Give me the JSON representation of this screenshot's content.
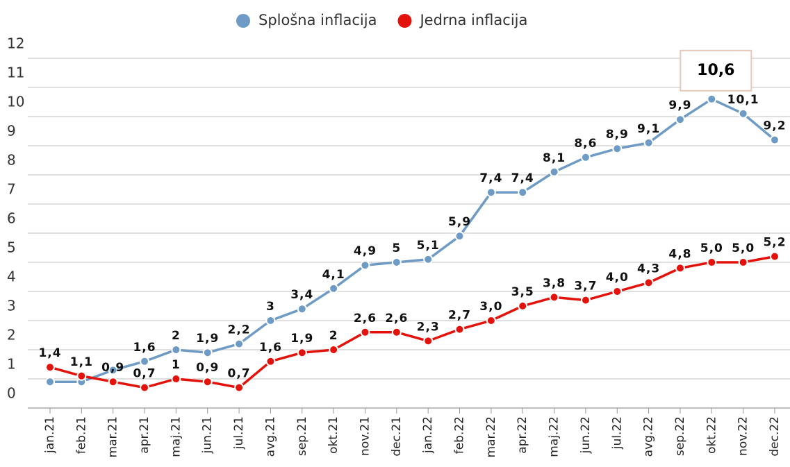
{
  "chart_data": {
    "type": "line",
    "categories": [
      "jan.21",
      "feb.21",
      "mar.21",
      "apr.21",
      "maj.21",
      "jun.21",
      "jul.21",
      "avg.21",
      "sep.21",
      "okt.21",
      "nov.21",
      "dec.21",
      "jan.22",
      "feb.22",
      "mar.22",
      "apr.22",
      "maj.22",
      "jun.22",
      "jul.22",
      "avg.22",
      "sep.22",
      "okt.22",
      "nov.22",
      "dec.22"
    ],
    "series": [
      {
        "name": "Splošna inflacija",
        "color": "#6e9bc5",
        "values": [
          0.9,
          0.9,
          1.3,
          1.6,
          2,
          1.9,
          2.2,
          3,
          3.4,
          4.1,
          4.9,
          5,
          5.1,
          5.9,
          7.4,
          7.4,
          8.1,
          8.6,
          8.9,
          9.1,
          9.9,
          10.6,
          10.1,
          9.2
        ],
        "value_labels": [
          null,
          null,
          null,
          "1,6",
          "2",
          "1,9",
          "2,2",
          "3",
          "3,4",
          "4,1",
          "4,9",
          "5",
          "5,1",
          "5,9",
          "7,4",
          "7,4",
          "8,1",
          "8,6",
          "8,9",
          "9,1",
          "9,9",
          "10,6",
          "10,1",
          "9,2"
        ]
      },
      {
        "name": "Jedrna inflacija",
        "color": "#e3120b",
        "values": [
          1.4,
          1.1,
          0.9,
          0.7,
          1,
          0.9,
          0.7,
          1.6,
          1.9,
          2,
          2.6,
          2.6,
          2.3,
          2.7,
          3.0,
          3.5,
          3.8,
          3.7,
          4.0,
          4.3,
          4.8,
          5.0,
          5.0,
          5.2
        ],
        "value_labels": [
          "1,4",
          "1,1",
          "0,9",
          "0,7",
          "1",
          "0,9",
          "0,7",
          "1,6",
          "1,9",
          "2",
          "2,6",
          "2,6",
          "2,3",
          "2,7",
          "3,0",
          "3,5",
          "3,8",
          "3,7",
          "4,0",
          "4,3",
          "4,8",
          "5,0",
          "5,0",
          "5,2"
        ]
      }
    ],
    "ylim": [
      0,
      12.3
    ],
    "yticks": [
      0,
      1,
      2,
      3,
      4,
      5,
      6,
      7,
      8,
      9,
      10,
      11,
      12
    ],
    "grid": true
  }
}
